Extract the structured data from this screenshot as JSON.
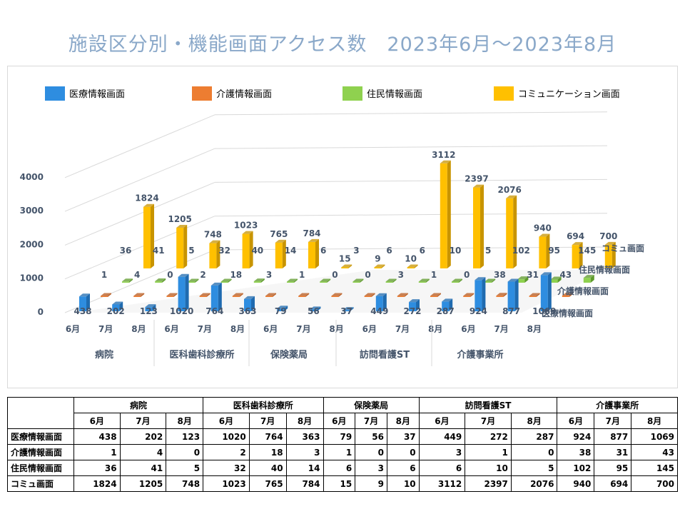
{
  "title": "施設区分別・機能画面アクセス数　2023年6月～2023年8月",
  "colors": {
    "series": [
      "#2e8de0",
      "#ed7d31",
      "#8fd14f",
      "#ffc000"
    ],
    "series_dark": [
      "#1f6bb0",
      "#b85a1e",
      "#5e9a2b",
      "#c89400"
    ],
    "axis_text": "#44546a",
    "grid": "#d9d9d9"
  },
  "chart_data": {
    "type": "bar",
    "variant": "3d-column",
    "groups": [
      "病院",
      "医科歯科診療所",
      "保険薬局",
      "訪問看護ST",
      "介護事業所"
    ],
    "months": [
      "6月",
      "7月",
      "8月"
    ],
    "series": [
      {
        "name": "医療情報画面",
        "depth_label": "医療情報画面",
        "values": [
          438,
          202,
          123,
          1020,
          764,
          363,
          79,
          56,
          37,
          449,
          272,
          287,
          924,
          877,
          1069
        ]
      },
      {
        "name": "介護情報画面",
        "depth_label": "介護情報画面",
        "values": [
          1,
          4,
          0,
          2,
          18,
          3,
          1,
          0,
          0,
          3,
          1,
          0,
          38,
          31,
          43
        ]
      },
      {
        "name": "住民情報画面",
        "depth_label": "住民情報画面",
        "values": [
          36,
          41,
          5,
          32,
          40,
          14,
          6,
          3,
          6,
          6,
          10,
          5,
          102,
          95,
          145
        ]
      },
      {
        "name": "コミュニケーション画面",
        "depth_label": "コミュ画面",
        "values": [
          1824,
          1205,
          748,
          1023,
          765,
          784,
          15,
          9,
          10,
          3112,
          2397,
          2076,
          940,
          694,
          700
        ]
      }
    ],
    "y_ticks": [
      0,
      1000,
      2000,
      3000,
      4000
    ],
    "ylim": [
      0,
      4000
    ],
    "legend_position": "top",
    "grid": true
  },
  "table": {
    "row_labels": [
      "医療情報画面",
      "介護情報画面",
      "住民情報画面",
      "コミュ画面"
    ]
  }
}
